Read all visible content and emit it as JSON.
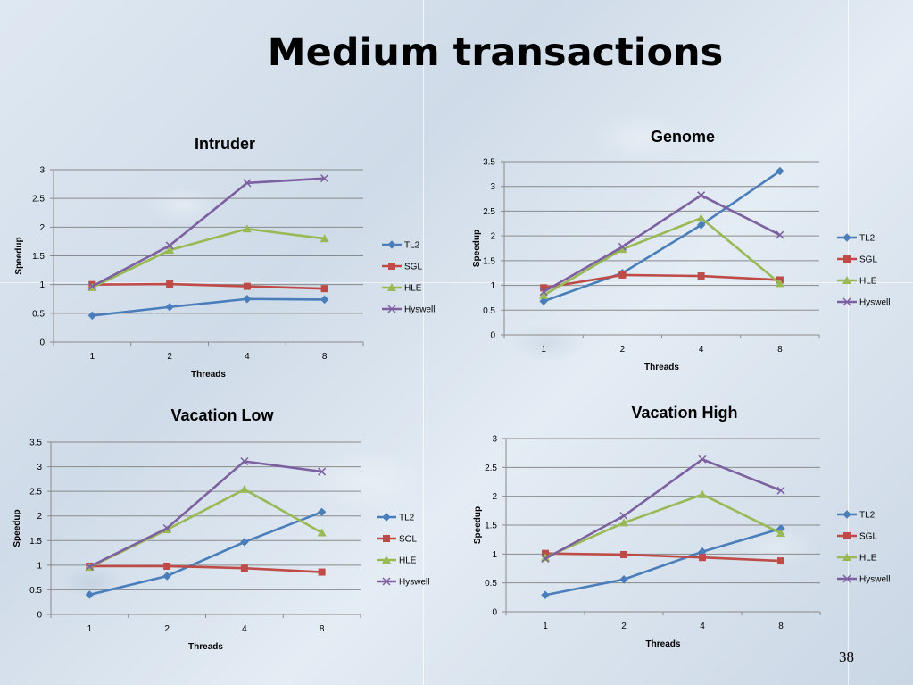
{
  "slide": {
    "title": "Medium transactions",
    "page_number": "38"
  },
  "series_colors": {
    "TL2": "#4a7ebb",
    "SGL": "#be4b48",
    "HLE": "#98b954",
    "Hyswell": "#7d60a0"
  },
  "chart_data": [
    {
      "type": "line",
      "title": "Intruder",
      "xlabel": "Threads",
      "ylabel": "Speedup",
      "categories": [
        "1",
        "2",
        "4",
        "8"
      ],
      "ylim": [
        0,
        3
      ],
      "yticks": [
        "0",
        "0.5",
        "1",
        "1.5",
        "2",
        "2.5",
        "3"
      ],
      "grid": true,
      "legend": "right",
      "series": [
        {
          "name": "TL2",
          "values": [
            0.46,
            0.61,
            0.75,
            0.74
          ]
        },
        {
          "name": "SGL",
          "values": [
            1.0,
            1.01,
            0.97,
            0.93
          ]
        },
        {
          "name": "HLE",
          "values": [
            0.95,
            1.6,
            1.97,
            1.8
          ]
        },
        {
          "name": "Hyswell",
          "values": [
            0.97,
            1.68,
            2.77,
            2.85
          ]
        }
      ]
    },
    {
      "type": "line",
      "title": "Genome",
      "xlabel": "Threads",
      "ylabel": "Speedup",
      "categories": [
        "1",
        "2",
        "4",
        "8"
      ],
      "ylim": [
        0,
        3.5
      ],
      "yticks": [
        "0",
        "0.5",
        "1",
        "1.5",
        "2",
        "2.5",
        "3",
        "3.5"
      ],
      "grid": true,
      "legend": "right",
      "series": [
        {
          "name": "TL2",
          "values": [
            0.68,
            1.25,
            2.22,
            3.31
          ]
        },
        {
          "name": "SGL",
          "values": [
            0.95,
            1.21,
            1.19,
            1.11
          ]
        },
        {
          "name": "HLE",
          "values": [
            0.8,
            1.73,
            2.36,
            1.04
          ]
        },
        {
          "name": "Hyswell",
          "values": [
            0.87,
            1.78,
            2.82,
            2.02
          ]
        }
      ]
    },
    {
      "type": "line",
      "title": "Vacation Low",
      "xlabel": "Threads",
      "ylabel": "Speedup",
      "categories": [
        "1",
        "2",
        "4",
        "8"
      ],
      "ylim": [
        0,
        3.5
      ],
      "yticks": [
        "0",
        "0.5",
        "1",
        "1.5",
        "2",
        "2.5",
        "3",
        "3.5"
      ],
      "grid": true,
      "legend": "right",
      "series": [
        {
          "name": "TL2",
          "values": [
            0.4,
            0.78,
            1.47,
            2.08
          ]
        },
        {
          "name": "SGL",
          "values": [
            0.98,
            0.98,
            0.94,
            0.86
          ]
        },
        {
          "name": "HLE",
          "values": [
            0.96,
            1.72,
            2.54,
            1.66
          ]
        },
        {
          "name": "Hyswell",
          "values": [
            0.97,
            1.75,
            3.11,
            2.9
          ]
        }
      ]
    },
    {
      "type": "line",
      "title": "Vacation High",
      "xlabel": "Threads",
      "ylabel": "Speedup",
      "categories": [
        "1",
        "2",
        "4",
        "8"
      ],
      "ylim": [
        0,
        3
      ],
      "yticks": [
        "0",
        "0.5",
        "1",
        "1.5",
        "2",
        "2.5",
        "3"
      ],
      "grid": true,
      "legend": "right",
      "series": [
        {
          "name": "TL2",
          "values": [
            0.29,
            0.56,
            1.04,
            1.44
          ]
        },
        {
          "name": "SGL",
          "values": [
            1.01,
            0.99,
            0.94,
            0.88
          ]
        },
        {
          "name": "HLE",
          "values": [
            0.94,
            1.54,
            2.03,
            1.36
          ]
        },
        {
          "name": "Hyswell",
          "values": [
            0.92,
            1.66,
            2.64,
            2.1
          ]
        }
      ]
    }
  ]
}
